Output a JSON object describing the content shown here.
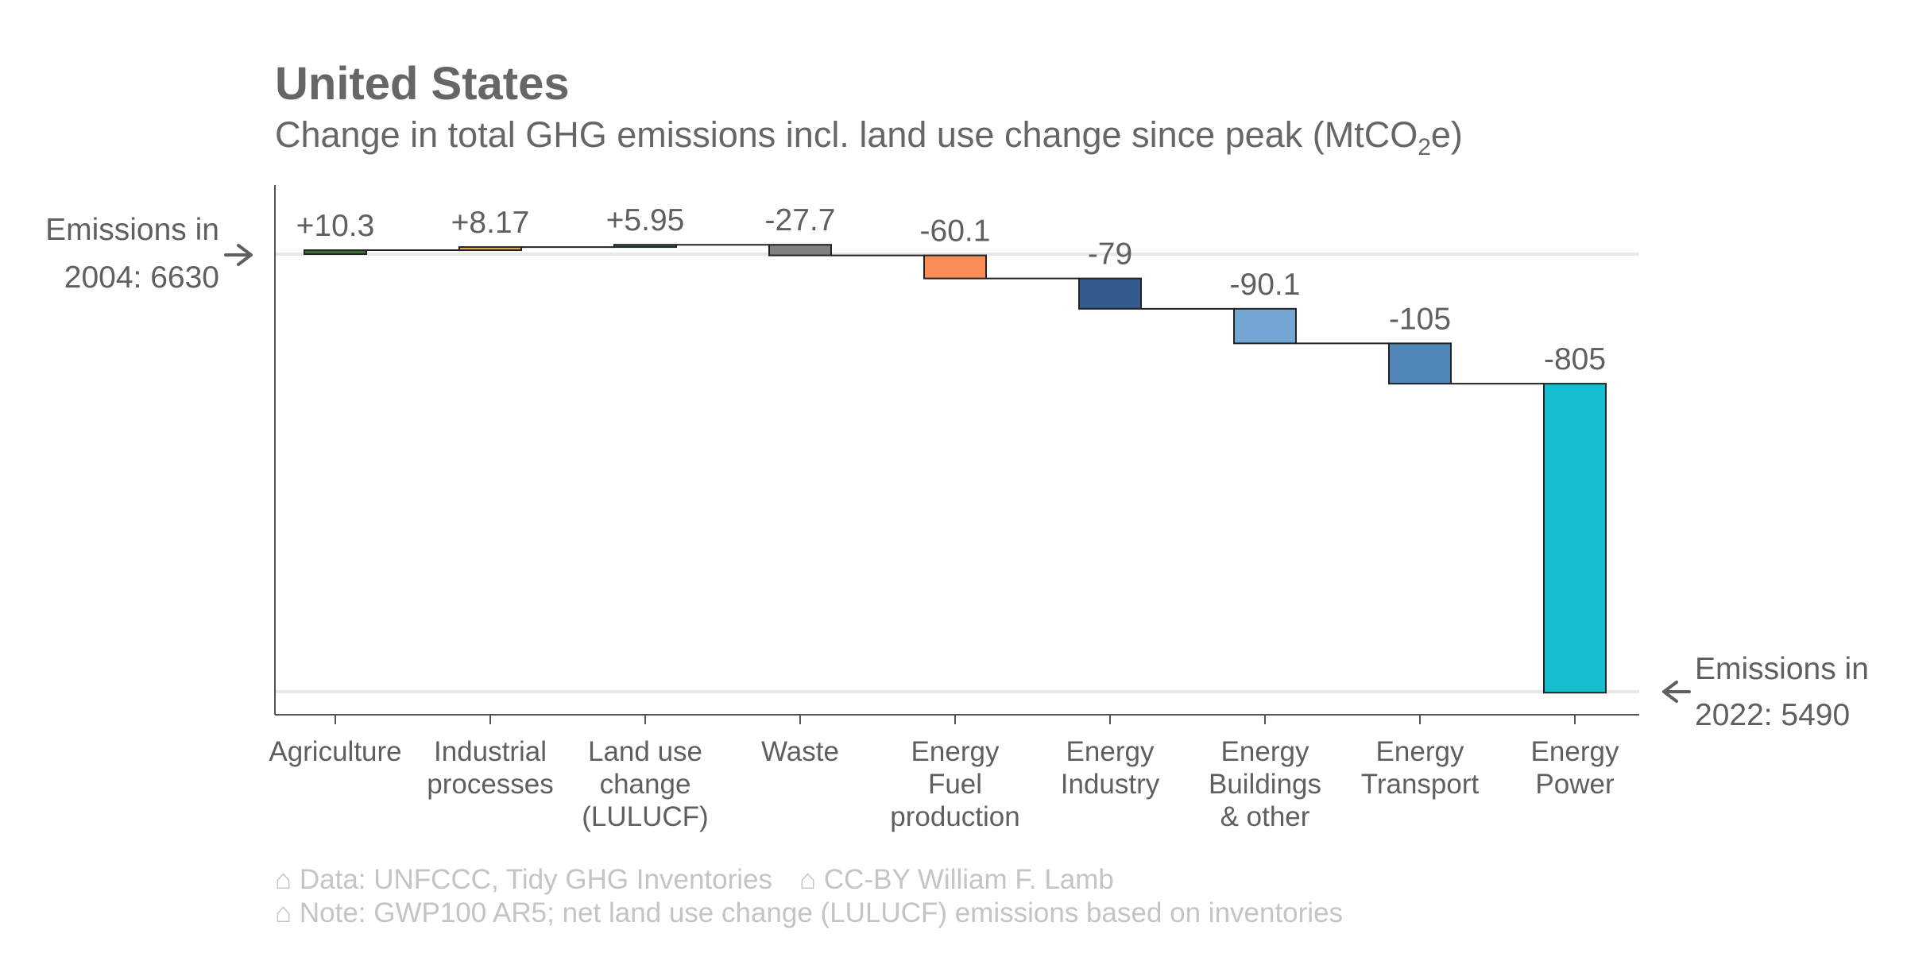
{
  "header": {
    "title": "United States",
    "subtitle_main": "Change in total GHG emissions incl. land use change since peak (MtCO",
    "subtitle_sub": "2",
    "subtitle_end": "e)"
  },
  "annotations": {
    "start_line1": "Emissions in",
    "start_line2": "2004: 6630",
    "end_line1": "Emissions in",
    "end_line2": "2022: 5490"
  },
  "caption": {
    "line1_a": "⌂ Data: UNFCCC, Tidy GHG Inventories",
    "line1_b": "⌂ CC-BY William F. Lamb",
    "line2": "⌂ Note: GWP100 AR5; net land use change (LULUCF) emissions based on inventories"
  },
  "chart_data": {
    "type": "waterfall",
    "title": "United States",
    "subtitle": "Change in total GHG emissions incl. land use change since peak (MtCO2e)",
    "start": {
      "year": 2004,
      "value": 6630
    },
    "end": {
      "year": 2022,
      "value": 5490
    },
    "categories": [
      [
        "Agriculture"
      ],
      [
        "Industrial",
        "processes"
      ],
      [
        "Land use",
        "change",
        "(LULUCF)"
      ],
      [
        "Waste"
      ],
      [
        "Energy",
        "Fuel",
        "production"
      ],
      [
        "Energy",
        "Industry"
      ],
      [
        "Energy",
        "Buildings",
        "& other"
      ],
      [
        "Energy",
        "Transport"
      ],
      [
        "Energy",
        "Power"
      ]
    ],
    "values": [
      10.3,
      8.17,
      5.95,
      -27.7,
      -60.1,
      -79,
      -90.1,
      -105,
      -805
    ],
    "labels": [
      "+10.3",
      "+8.17",
      "+5.95",
      "-27.7",
      "-60.1",
      "-79",
      "-90.1",
      "-105",
      "-805"
    ],
    "colors": [
      "#3d6b35",
      "#e0b24a",
      "#2e6b4a",
      "#808080",
      "#fc8d59",
      "#345d8e",
      "#74a6d4",
      "#5086b8",
      "#17becf"
    ],
    "ylim": [
      5460,
      6720
    ]
  }
}
